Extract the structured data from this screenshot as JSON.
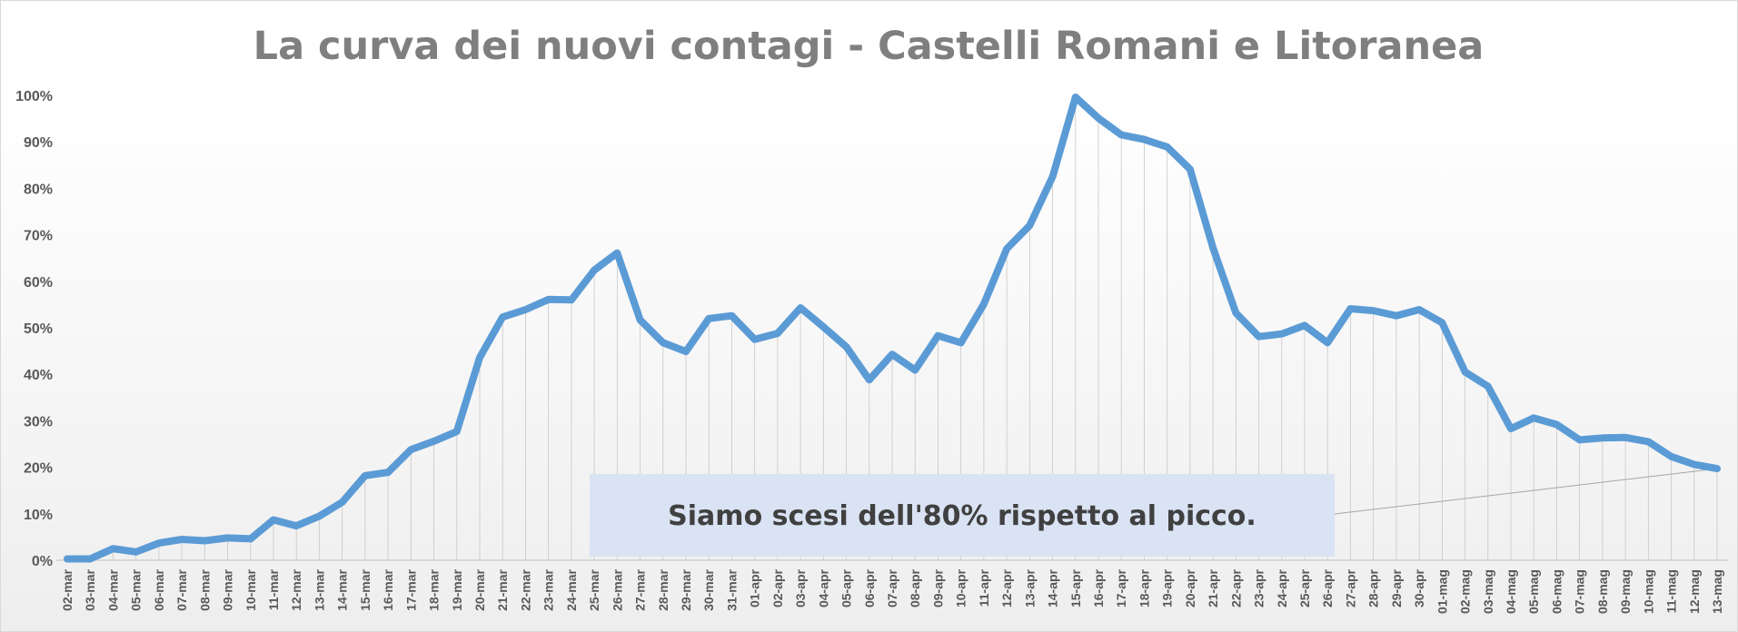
{
  "chart_data": {
    "type": "line",
    "title": "La curva dei nuovi contagi - Castelli Romani e Litoranea",
    "xlabel": "",
    "ylabel": "",
    "ylim": [
      0,
      100
    ],
    "yticks": [
      "0%",
      "10%",
      "20%",
      "30%",
      "40%",
      "50%",
      "60%",
      "70%",
      "80%",
      "90%",
      "100%"
    ],
    "grid": "vertical drop lines",
    "legend": "none",
    "line_color": "#5b9bd5",
    "categories": [
      "02-mar",
      "03-mar",
      "04-mar",
      "05-mar",
      "06-mar",
      "07-mar",
      "08-mar",
      "09-mar",
      "10-mar",
      "11-mar",
      "12-mar",
      "13-mar",
      "14-mar",
      "15-mar",
      "16-mar",
      "17-mar",
      "18-mar",
      "19-mar",
      "20-mar",
      "21-mar",
      "22-mar",
      "23-mar",
      "24-mar",
      "25-mar",
      "26-mar",
      "27-mar",
      "28-mar",
      "29-mar",
      "30-mar",
      "31-mar",
      "01-apr",
      "02-apr",
      "03-apr",
      "04-apr",
      "05-apr",
      "06-apr",
      "07-apr",
      "08-apr",
      "09-apr",
      "10-apr",
      "11-apr",
      "12-apr",
      "13-apr",
      "14-apr",
      "15-apr",
      "16-apr",
      "17-apr",
      "18-apr",
      "19-apr",
      "20-apr",
      "21-apr",
      "22-apr",
      "23-apr",
      "24-apr",
      "25-apr",
      "26-apr",
      "27-apr",
      "28-apr",
      "29-apr",
      "30-apr",
      "01-mag",
      "02-mag",
      "03-mag",
      "04-mag",
      "05-mag",
      "06-mag",
      "07-mag",
      "08-mag",
      "09-mag",
      "10-mag",
      "11-mag",
      "12-mag",
      "13-mag"
    ],
    "values": [
      0.3,
      0.3,
      2.5,
      1.8,
      3.7,
      4.5,
      4.2,
      4.8,
      4.6,
      8.7,
      7.4,
      9.5,
      12.5,
      18.2,
      18.9,
      23.8,
      25.6,
      27.7,
      43.6,
      52.3,
      53.9,
      56.1,
      56.0,
      62.4,
      66.1,
      51.7,
      46.8,
      44.9,
      52.0,
      52.6,
      47.5,
      48.8,
      54.3,
      50.2,
      45.9,
      38.8,
      44.3,
      40.9,
      48.3,
      46.8,
      55.1,
      67.0,
      72.0,
      82.5,
      99.6,
      95.1,
      91.5,
      90.5,
      88.9,
      84.1,
      67.2,
      53.2,
      48.1,
      48.7,
      50.5,
      46.8,
      54.1,
      53.7,
      52.6,
      53.9,
      51.1,
      40.5,
      37.4,
      28.3,
      30.6,
      29.2,
      25.9,
      26.3,
      26.4,
      25.5,
      22.3,
      20.6,
      19.7
    ],
    "annotation": "Siamo scesi dell'80% rispetto al picco."
  }
}
